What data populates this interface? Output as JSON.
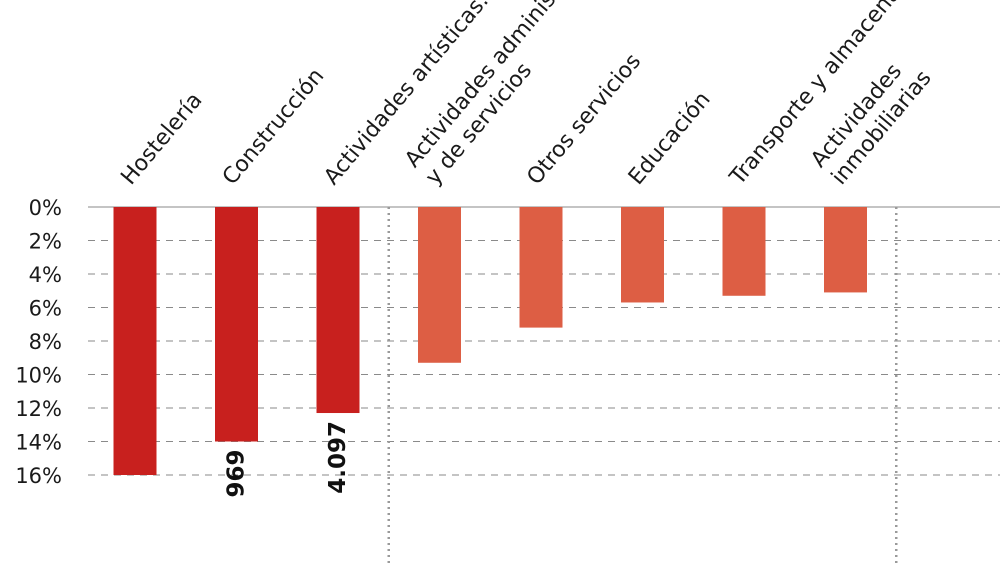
{
  "chart_data": {
    "type": "bar",
    "orientation": "downward",
    "categories": [
      "Hostelería",
      "Construcción",
      "Actividades artísticas...",
      "Actividades adminis... y de servicios",
      "Otros servicios",
      "Educación",
      "Transporte y almacenamiento",
      "Actividades inmobiliarias"
    ],
    "category_lines": [
      [
        "Hostelería"
      ],
      [
        "Construcción"
      ],
      [
        "Actividades artísticas..."
      ],
      [
        "Actividades adminis",
        "y de servicios"
      ],
      [
        "Otros servicios"
      ],
      [
        "Educación"
      ],
      [
        "Transporte y almacenamiento"
      ],
      [
        "Actividades",
        "inmobiliarias"
      ]
    ],
    "values": [
      16.0,
      14.0,
      12.3,
      9.3,
      7.2,
      5.7,
      5.3,
      5.1
    ],
    "data_labels": [
      "",
      "969",
      "4.097",
      "",
      "",
      "",
      "",
      ""
    ],
    "ylim": [
      0,
      16
    ],
    "y_ticks": [
      "0%",
      "2%",
      "4%",
      "6%",
      "8%",
      "10%",
      "12%",
      "14%",
      "16%"
    ],
    "y_tick_values": [
      0,
      2,
      4,
      6,
      8,
      10,
      12,
      14,
      16
    ],
    "group_dividers_after": [
      2,
      7
    ],
    "colors": {
      "highlight": "#c8201e",
      "secondary": "#dd5e44",
      "grid": "#8a8a8a",
      "divider": "#9a9a9a",
      "text": "#1a1a1a"
    },
    "highlight_count": 3
  }
}
